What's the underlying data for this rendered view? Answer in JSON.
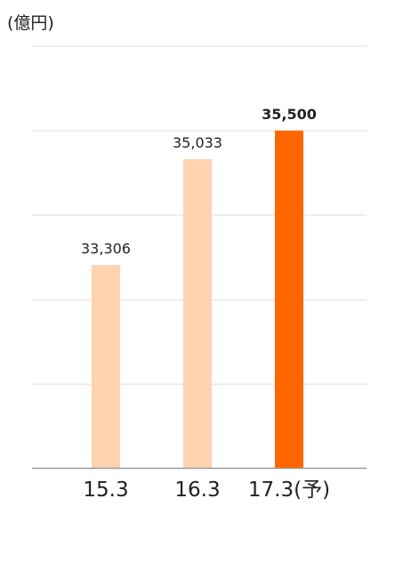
{
  "chart_data": {
    "type": "bar",
    "unit_label": "(億円)",
    "categories": [
      "15.3",
      "16.3",
      "17.3(予)"
    ],
    "values": [
      33306,
      35033,
      35500
    ],
    "value_labels": [
      "33,306",
      "35,033",
      "35,500"
    ],
    "highlight_index": 2,
    "ylim": [
      30000,
      35500
    ],
    "grid": true,
    "colors": {
      "bar": "#ffd2b0",
      "bar_highlight": "#ff6600",
      "grid": "#dddddd",
      "axis": "#999999",
      "text": "#222222"
    }
  }
}
